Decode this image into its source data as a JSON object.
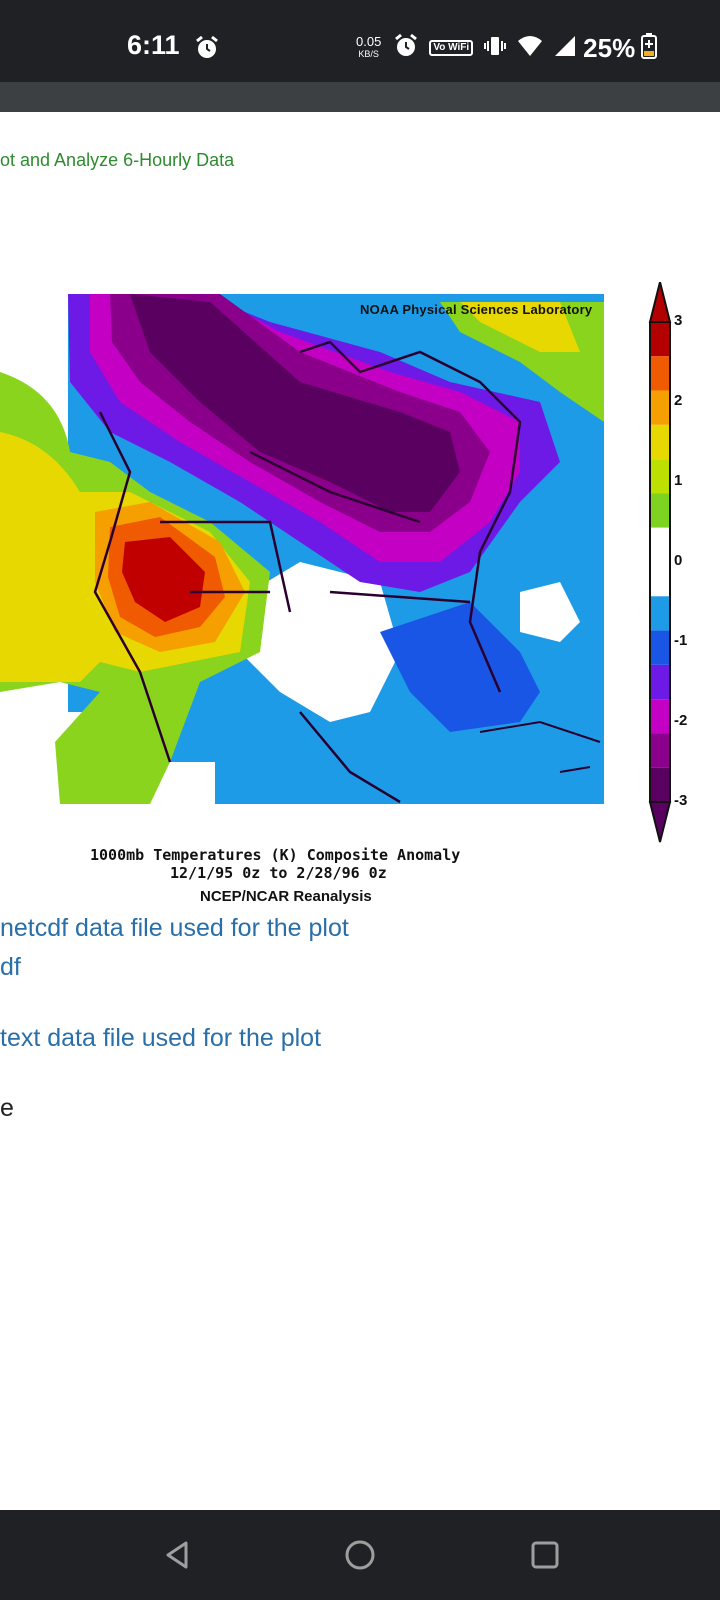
{
  "status": {
    "time": "6:11",
    "speed_value": "0.05",
    "speed_unit": "KB/S",
    "wifi_label": "Vo WiFi",
    "battery": "25%"
  },
  "page": {
    "heading": "ot and Analyze 6-Hourly Data",
    "image_credit": "NOAA Physical Sciences Laboratory",
    "caption_line1": "1000mb Temperatures (K)   Composite Anomaly",
    "caption_line2": "12/1/95 0z  to 2/28/96 0z",
    "caption_line3": "NCEP/NCAR Reanalysis",
    "colorbar_labels": [
      "3",
      "2",
      "1",
      "0",
      "-1",
      "-2",
      "-3"
    ],
    "colorbar_colors": [
      "#b30000",
      "#f05a00",
      "#f5a000",
      "#e6d800",
      "#bde000",
      "#7ed321",
      "#ffffff",
      "#ffffff",
      "#1e9be6",
      "#1a56e6",
      "#6e1ae6",
      "#c400c4",
      "#8a008a",
      "#5a0060"
    ],
    "links": {
      "netcdf": "netcdf data file used for the plot",
      "netcdf_cont": "df",
      "text": "text data file used for the plot",
      "trailing": "e"
    }
  }
}
